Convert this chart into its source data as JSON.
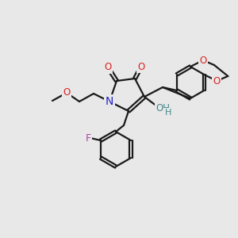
{
  "background_color": "#e8e8e8",
  "bond_color": "#1a1a1a",
  "atom_colors": {
    "N": "#2222cc",
    "O": "#dd2222",
    "OH": "#448888",
    "F": "#aa44aa"
  },
  "figsize": [
    3.0,
    3.0
  ],
  "dpi": 100
}
